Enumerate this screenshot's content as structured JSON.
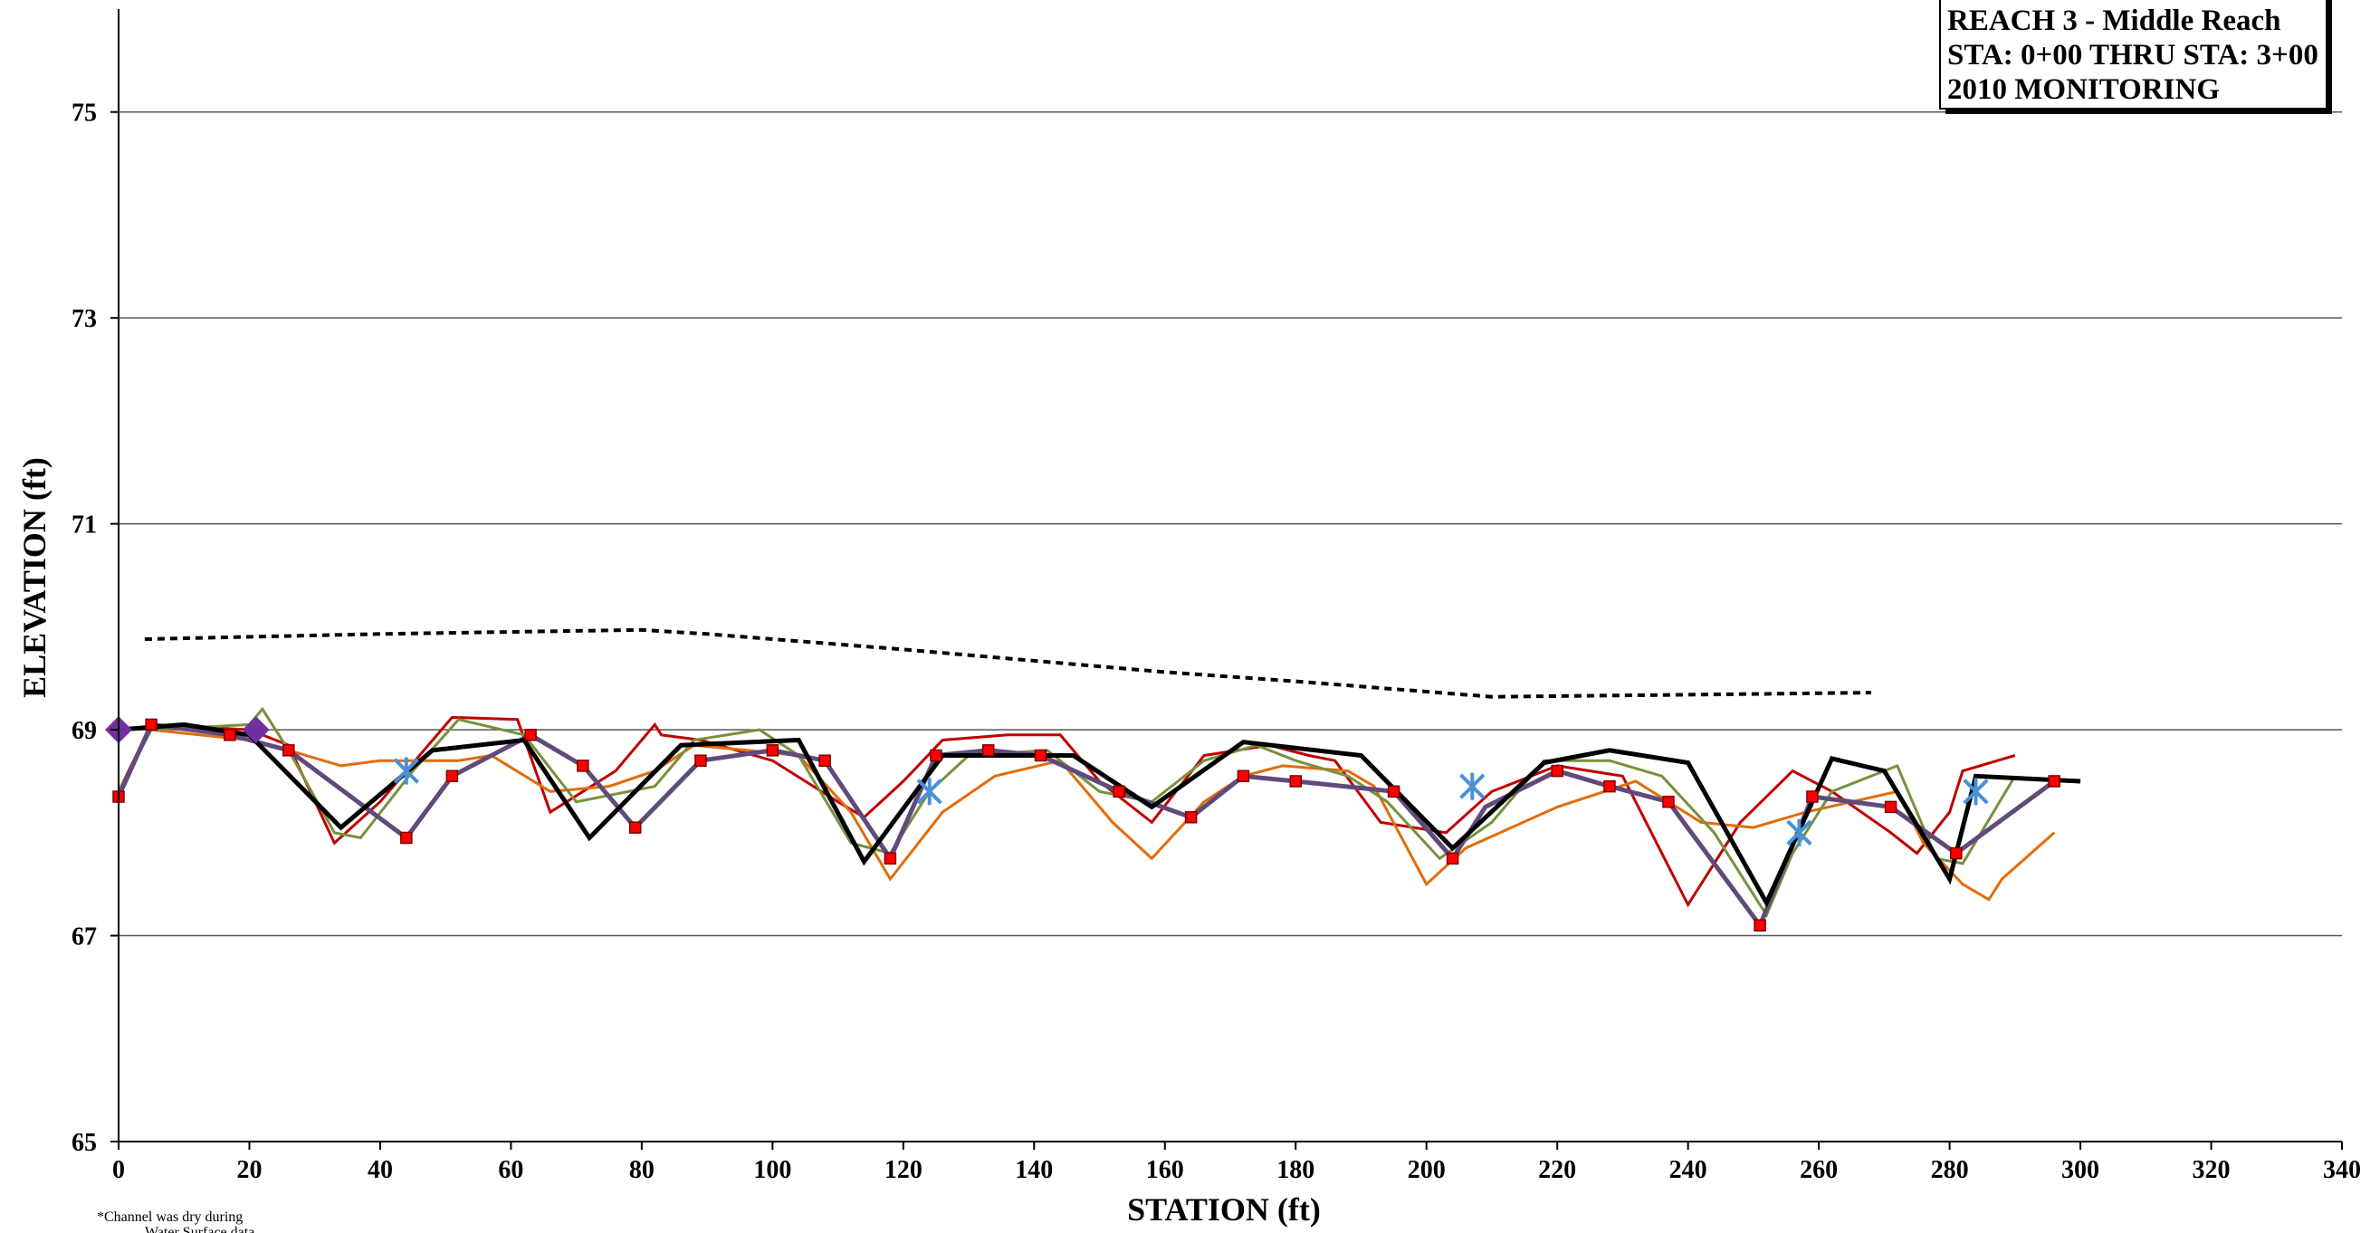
{
  "chart_data": {
    "type": "line",
    "title_lines": [
      "REACH 3 - Middle Reach",
      "STA: 0+00 THRU STA: 3+00",
      "2010 MONITORING"
    ],
    "xlabel": "STATION (ft)",
    "ylabel": "ELEVATION (ft)",
    "xlim": [
      0,
      340
    ],
    "ylim": [
      65,
      76
    ],
    "x_ticks": [
      0,
      20,
      40,
      60,
      80,
      100,
      120,
      140,
      160,
      180,
      200,
      220,
      240,
      260,
      280,
      300,
      320,
      340
    ],
    "y_ticks": [
      65,
      67,
      69,
      71,
      73,
      75
    ],
    "grid": "horizontal",
    "note_lines": [
      "*Channel was dry during",
      "Water Surface data"
    ],
    "series": [
      {
        "color": "#000000",
        "dash": "8 6",
        "width": 4,
        "x": [
          4,
          40,
          60,
          80,
          90,
          120,
          160,
          180,
          210,
          240,
          268
        ],
        "y": [
          69.88,
          69.93,
          69.95,
          69.97,
          69.93,
          69.78,
          69.56,
          69.47,
          69.32,
          69.34,
          69.36
        ]
      },
      {
        "color": "#c00000",
        "width": 3,
        "x": [
          0,
          5,
          20,
          26,
          33,
          40,
          44,
          51,
          61,
          66,
          76,
          82,
          83,
          89,
          100,
          110,
          114,
          120,
          126,
          136,
          144,
          150,
          158,
          166,
          176,
          182,
          186,
          193,
          203,
          210,
          220,
          230,
          240,
          248,
          256,
          262,
          271,
          275,
          280,
          282,
          290
        ],
        "y": [
          68.4,
          69.05,
          69.0,
          68.85,
          67.9,
          68.3,
          68.6,
          69.12,
          69.1,
          68.2,
          68.6,
          69.05,
          68.95,
          68.9,
          68.7,
          68.3,
          68.15,
          68.5,
          68.9,
          68.95,
          68.95,
          68.5,
          68.1,
          68.75,
          68.85,
          68.75,
          68.7,
          68.1,
          68.0,
          68.4,
          68.65,
          68.55,
          67.3,
          68.1,
          68.6,
          68.4,
          68.0,
          67.8,
          68.2,
          68.6,
          68.75
        ]
      },
      {
        "color": "#e36c09",
        "width": 3,
        "x": [
          0,
          5,
          20,
          26,
          34,
          40,
          45,
          52,
          57,
          66,
          75,
          82,
          88,
          96,
          104,
          112,
          118,
          126,
          134,
          144,
          152,
          158,
          166,
          172,
          178,
          188,
          192,
          200,
          206,
          220,
          232,
          242,
          250,
          258,
          272,
          276,
          282,
          286,
          288,
          296
        ],
        "y": [
          68.4,
          69.0,
          68.9,
          68.8,
          68.65,
          68.7,
          68.7,
          68.7,
          68.75,
          68.4,
          68.45,
          68.6,
          68.85,
          68.8,
          68.75,
          68.2,
          67.55,
          68.2,
          68.55,
          68.7,
          68.1,
          67.75,
          68.3,
          68.55,
          68.65,
          68.6,
          68.45,
          67.5,
          67.85,
          68.25,
          68.5,
          68.1,
          68.05,
          68.2,
          68.4,
          67.9,
          67.5,
          67.35,
          67.55,
          68.0
        ]
      },
      {
        "color": "#76923c",
        "width": 3,
        "x": [
          0,
          5,
          20,
          22,
          26,
          33,
          37,
          45,
          52,
          62,
          70,
          82,
          88,
          98,
          104,
          112,
          118,
          124,
          130,
          142,
          150,
          158,
          166,
          174,
          180,
          188,
          194,
          202,
          210,
          218,
          228,
          236,
          244,
          252,
          256,
          262,
          272,
          278,
          282,
          290
        ],
        "y": [
          68.4,
          69.0,
          69.05,
          69.2,
          68.8,
          68.0,
          67.95,
          68.6,
          69.1,
          68.95,
          68.3,
          68.45,
          68.9,
          69.0,
          68.75,
          67.9,
          67.8,
          68.4,
          68.75,
          68.8,
          68.4,
          68.3,
          68.7,
          68.85,
          68.7,
          68.55,
          68.3,
          67.75,
          68.1,
          68.7,
          68.7,
          68.55,
          68.0,
          67.2,
          67.8,
          68.4,
          68.65,
          67.75,
          67.7,
          68.55
        ]
      },
      {
        "color": "#604a7b",
        "width": 5,
        "x": [
          0,
          5,
          17,
          26,
          44,
          51,
          63,
          71,
          79,
          89,
          100,
          108,
          118,
          125,
          133,
          141,
          153,
          164,
          172,
          180,
          195,
          204,
          209,
          220,
          228,
          237,
          251,
          259,
          271,
          281,
          296
        ],
        "y": [
          68.35,
          69.05,
          68.95,
          68.8,
          67.95,
          68.55,
          68.95,
          68.65,
          68.05,
          68.7,
          68.8,
          68.7,
          67.75,
          68.75,
          68.8,
          68.75,
          68.4,
          68.15,
          68.55,
          68.5,
          68.4,
          67.75,
          68.25,
          68.6,
          68.45,
          68.3,
          67.1,
          68.35,
          68.25,
          67.8,
          68.5
        ]
      },
      {
        "color": "#000000",
        "width": 5,
        "x": [
          0,
          10,
          20,
          34,
          48,
          62,
          72,
          86,
          104,
          114,
          126,
          146,
          158,
          172,
          190,
          204,
          218,
          228,
          240,
          252,
          262,
          270,
          280,
          284,
          300
        ],
        "y": [
          69.0,
          69.05,
          68.95,
          68.05,
          68.8,
          68.9,
          67.95,
          68.85,
          68.9,
          67.72,
          68.75,
          68.75,
          68.25,
          68.88,
          68.75,
          67.85,
          68.68,
          68.8,
          68.68,
          67.32,
          68.72,
          68.6,
          67.55,
          68.55,
          68.5
        ]
      }
    ],
    "markers": [
      {
        "shape": "square",
        "color": "#ff0000",
        "stroke": "#7f0000",
        "size": 12,
        "x": [
          0,
          5,
          17,
          26,
          44,
          51,
          63,
          71,
          79,
          89,
          100,
          108,
          118,
          125,
          133,
          141,
          153,
          164,
          172,
          180,
          195,
          204,
          220,
          228,
          237,
          251,
          259,
          271,
          281,
          296
        ],
        "y": [
          68.35,
          69.05,
          68.95,
          68.8,
          67.95,
          68.55,
          68.95,
          68.65,
          68.05,
          68.7,
          68.8,
          68.7,
          67.75,
          68.75,
          68.8,
          68.75,
          68.4,
          68.15,
          68.55,
          68.5,
          68.4,
          67.75,
          68.6,
          68.45,
          68.3,
          67.1,
          68.35,
          68.25,
          67.8,
          68.5
        ]
      },
      {
        "shape": "diamond",
        "color": "#7030a0",
        "size": 30,
        "x": [
          0,
          21
        ],
        "y": [
          69.0,
          69.0
        ]
      },
      {
        "shape": "asterisk",
        "color": "#4a90d9",
        "size": 30,
        "x": [
          44,
          124,
          207,
          257,
          284
        ],
        "y": [
          68.6,
          68.4,
          68.45,
          68.0,
          68.4
        ]
      }
    ]
  }
}
